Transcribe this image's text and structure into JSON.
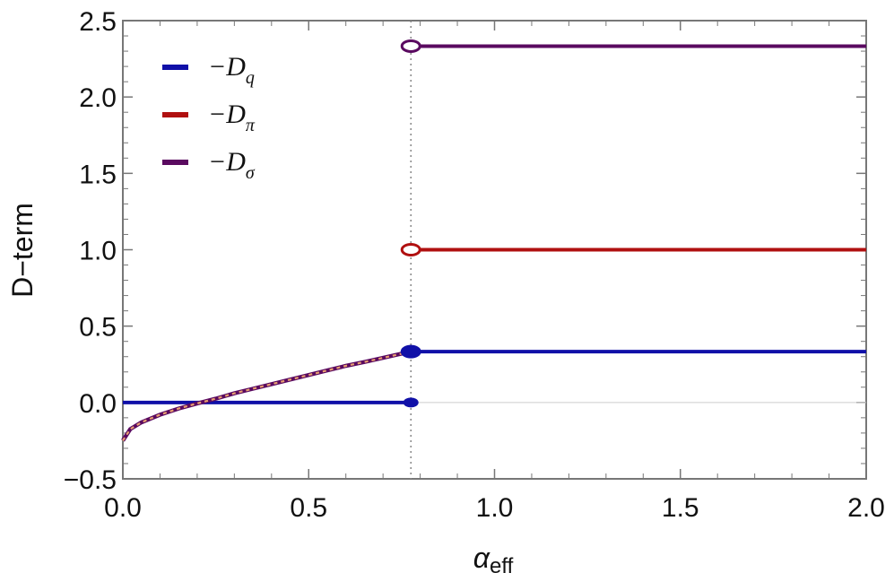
{
  "chart_data": {
    "type": "line",
    "xlabel": "α",
    "xlabel_sub": "eff",
    "ylabel": "D−term",
    "xlim": [
      0.0,
      2.0
    ],
    "ylim": [
      -0.5,
      2.5
    ],
    "xticks": [
      "0.0",
      "0.5",
      "1.0",
      "1.5",
      "2.0"
    ],
    "yticks": [
      "−0.5",
      "0.0",
      "0.5",
      "1.0",
      "1.5",
      "2.0",
      "2.5"
    ],
    "critical_x": 0.775,
    "grid": false,
    "legend_position": "top-left",
    "series": [
      {
        "name": "−D",
        "subscript": "q",
        "color": "#1010a8",
        "segments": [
          {
            "x": [
              0.0,
              0.775
            ],
            "y": [
              0.0,
              0.0
            ]
          },
          {
            "x": [
              0.775,
              2.0
            ],
            "y": [
              0.333,
              0.333
            ]
          }
        ],
        "markers": [
          {
            "x": 0.775,
            "y": 0.0,
            "filled": true
          },
          {
            "x": 0.775,
            "y": 0.333,
            "filled": true
          }
        ]
      },
      {
        "name": "−D",
        "subscript": "π",
        "color": "#b01010",
        "segments": [
          {
            "x": [
              0.775,
              2.0
            ],
            "y": [
              1.0,
              1.0
            ]
          }
        ],
        "markers": [
          {
            "x": 0.775,
            "y": 1.0,
            "filled": false
          }
        ]
      },
      {
        "name": "−D",
        "subscript": "σ",
        "color": "#5a0a60",
        "segments": [
          {
            "x": [
              0.775,
              2.0
            ],
            "y": [
              2.333,
              2.333
            ]
          }
        ],
        "markers": [
          {
            "x": 0.775,
            "y": 2.333,
            "filled": false
          }
        ]
      }
    ],
    "shared_curve": {
      "note": "dashed curve overlaying -D_pi and -D_sigma for x < critical_x",
      "colors": [
        "#b01010",
        "#5a0a60"
      ],
      "points": [
        [
          0.0,
          -0.25
        ],
        [
          0.02,
          -0.174
        ],
        [
          0.05,
          -0.13
        ],
        [
          0.1,
          -0.08
        ],
        [
          0.15,
          -0.04
        ],
        [
          0.2,
          -0.006
        ],
        [
          0.25,
          0.025
        ],
        [
          0.3,
          0.06
        ],
        [
          0.35,
          0.09
        ],
        [
          0.4,
          0.12
        ],
        [
          0.45,
          0.15
        ],
        [
          0.5,
          0.18
        ],
        [
          0.55,
          0.21
        ],
        [
          0.6,
          0.24
        ],
        [
          0.65,
          0.265
        ],
        [
          0.7,
          0.292
        ],
        [
          0.775,
          0.333
        ]
      ]
    }
  }
}
